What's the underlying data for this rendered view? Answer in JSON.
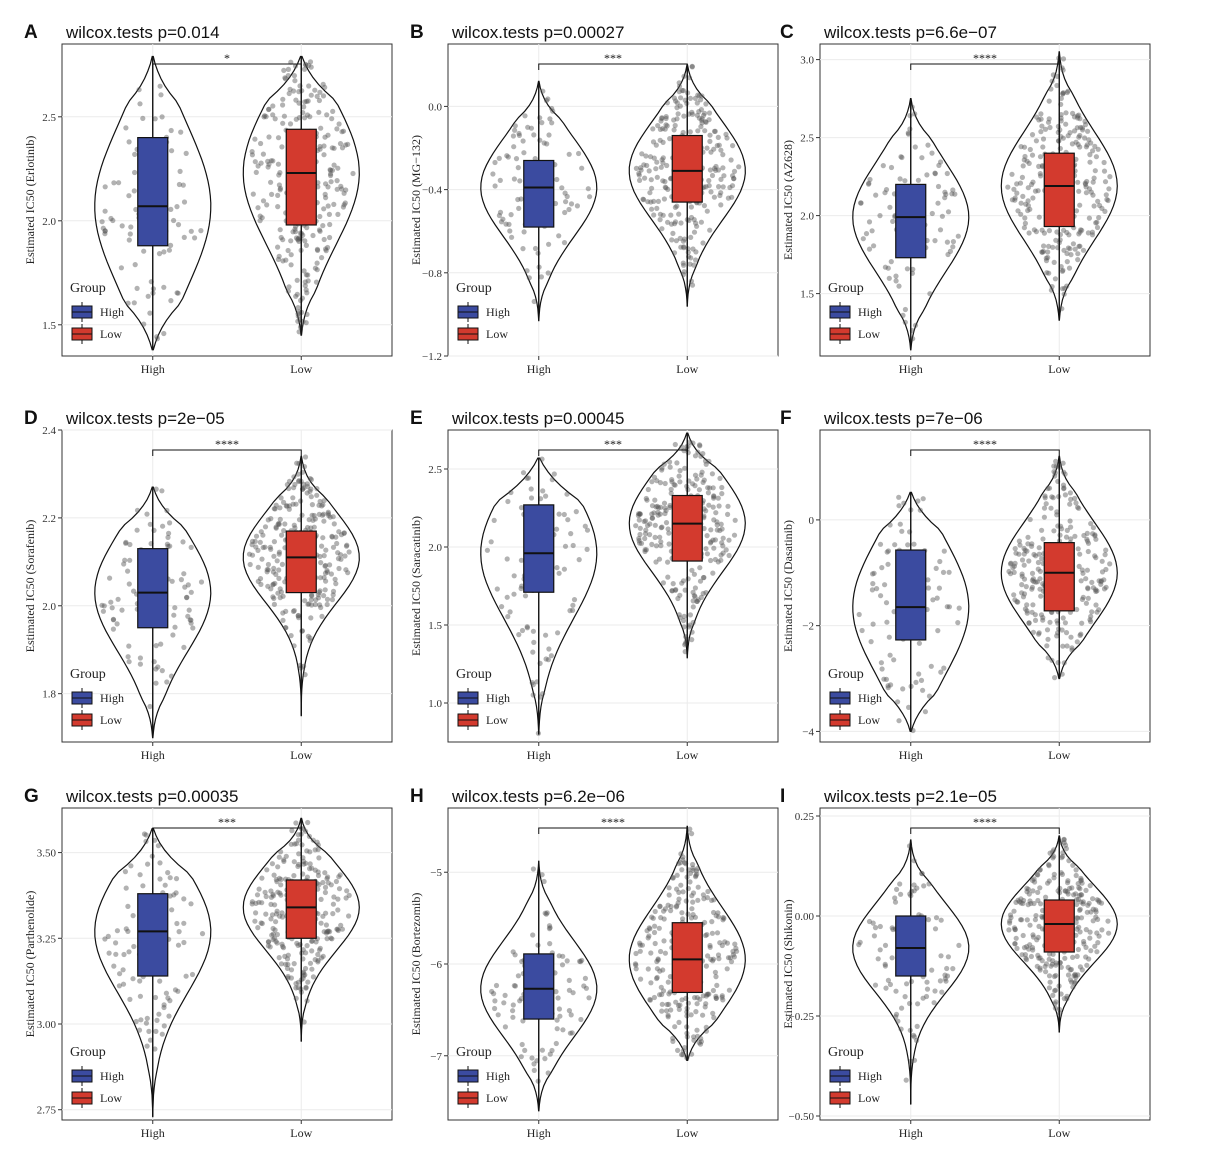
{
  "legend": {
    "title": "Group",
    "entries": [
      {
        "label": "High",
        "color": "#3B4BA0"
      },
      {
        "label": "Low",
        "color": "#D33A2E"
      }
    ]
  },
  "chart_data": [
    {
      "letter": "A",
      "title": "wilcox.tests p=0.014",
      "ylabel": "Estimated IC50 (Erlotinib)",
      "ylim": [
        1.35,
        2.85
      ],
      "yticks": [
        1.5,
        2.0,
        2.5
      ],
      "ytick_labels": [
        "1.5",
        "2.0",
        "2.5"
      ],
      "categories": [
        "High",
        "Low"
      ],
      "significance": "*",
      "box": [
        {
          "min": 1.38,
          "q1": 1.88,
          "median": 2.07,
          "q3": 2.4,
          "max": 2.79
        },
        {
          "min": 1.45,
          "q1": 1.98,
          "median": 2.23,
          "q3": 2.44,
          "max": 2.79
        }
      ]
    },
    {
      "letter": "B",
      "title": "wilcox.tests p=0.00027",
      "ylabel": "Estimated IC50 (MG−132)",
      "ylim": [
        -1.2,
        0.3
      ],
      "yticks": [
        -1.2,
        -0.8,
        -0.4,
        0.0
      ],
      "ytick_labels": [
        "−1.2",
        "−0.8",
        "−0.4",
        "0.0"
      ],
      "categories": [
        "High",
        "Low"
      ],
      "significance": "***",
      "box": [
        {
          "min": -1.03,
          "q1": -0.58,
          "median": -0.39,
          "q3": -0.26,
          "max": 0.12
        },
        {
          "min": -0.96,
          "q1": -0.46,
          "median": -0.31,
          "q3": -0.14,
          "max": 0.2
        }
      ]
    },
    {
      "letter": "C",
      "title": "wilcox.tests p=6.6e−07",
      "ylabel": "Estimated IC50 (AZ628)",
      "ylim": [
        1.1,
        3.1
      ],
      "yticks": [
        1.5,
        2.0,
        2.5,
        3.0
      ],
      "ytick_labels": [
        "1.5",
        "2.0",
        "2.5",
        "3.0"
      ],
      "categories": [
        "High",
        "Low"
      ],
      "significance": "****",
      "box": [
        {
          "min": 1.14,
          "q1": 1.73,
          "median": 1.99,
          "q3": 2.2,
          "max": 2.75
        },
        {
          "min": 1.33,
          "q1": 1.93,
          "median": 2.19,
          "q3": 2.4,
          "max": 3.05
        }
      ]
    },
    {
      "letter": "D",
      "title": "wilcox.tests p=2e−05",
      "ylabel": "Estimated IC50 (Sorafenib)",
      "ylim": [
        1.69,
        2.4
      ],
      "yticks": [
        1.8,
        2.0,
        2.2,
        2.4
      ],
      "ytick_labels": [
        "1.8",
        "2.0",
        "2.2",
        "2.4"
      ],
      "categories": [
        "High",
        "Low"
      ],
      "significance": "****",
      "box": [
        {
          "min": 1.7,
          "q1": 1.95,
          "median": 2.03,
          "q3": 2.13,
          "max": 2.27
        },
        {
          "min": 1.75,
          "q1": 2.03,
          "median": 2.11,
          "q3": 2.17,
          "max": 2.34
        }
      ]
    },
    {
      "letter": "E",
      "title": "wilcox.tests p=0.00045",
      "ylabel": "Estimated IC50 (Saracatinib)",
      "ylim": [
        0.75,
        2.75
      ],
      "yticks": [
        1.0,
        1.5,
        2.0,
        2.5
      ],
      "ytick_labels": [
        "1.0",
        "1.5",
        "2.0",
        "2.5"
      ],
      "categories": [
        "High",
        "Low"
      ],
      "significance": "***",
      "box": [
        {
          "min": 0.8,
          "q1": 1.71,
          "median": 1.96,
          "q3": 2.27,
          "max": 2.57
        },
        {
          "min": 1.29,
          "q1": 1.91,
          "median": 2.15,
          "q3": 2.33,
          "max": 2.73
        }
      ]
    },
    {
      "letter": "F",
      "title": "wilcox.tests p=7e−06",
      "ylabel": "Estimated IC50 (Dasatinib)",
      "ylim": [
        -4.2,
        1.7
      ],
      "yticks": [
        -4,
        -2,
        0
      ],
      "ytick_labels": [
        "−4",
        "−2",
        "0"
      ],
      "categories": [
        "High",
        "Low"
      ],
      "significance": "****",
      "box": [
        {
          "min": -4.0,
          "q1": -2.27,
          "median": -1.65,
          "q3": -0.57,
          "max": 0.52
        },
        {
          "min": -3.0,
          "q1": -1.72,
          "median": -1.0,
          "q3": -0.43,
          "max": 1.2
        }
      ]
    },
    {
      "letter": "G",
      "title": "wilcox.tests p=0.00035",
      "ylabel": "Estimated IC50 (Parthenolide)",
      "ylim": [
        2.72,
        3.63
      ],
      "yticks": [
        2.75,
        3.0,
        3.25,
        3.5
      ],
      "ytick_labels": [
        "2.75",
        "3.00",
        "3.25",
        "3.50"
      ],
      "categories": [
        "High",
        "Low"
      ],
      "significance": "***",
      "box": [
        {
          "min": 2.73,
          "q1": 3.14,
          "median": 3.27,
          "q3": 3.38,
          "max": 3.57
        },
        {
          "min": 2.95,
          "q1": 3.25,
          "median": 3.34,
          "q3": 3.42,
          "max": 3.6
        }
      ]
    },
    {
      "letter": "H",
      "title": "wilcox.tests p=6.2e−06",
      "ylabel": "Estimated IC50 (Bortezomib)",
      "ylim": [
        -7.7,
        -4.3
      ],
      "yticks": [
        -7,
        -6,
        -5
      ],
      "ytick_labels": [
        "−7",
        "−6",
        "−5"
      ],
      "categories": [
        "High",
        "Low"
      ],
      "significance": "****",
      "box": [
        {
          "min": -7.6,
          "q1": -6.6,
          "median": -6.27,
          "q3": -5.89,
          "max": -4.88
        },
        {
          "min": -7.05,
          "q1": -6.31,
          "median": -5.95,
          "q3": -5.55,
          "max": -4.5
        }
      ]
    },
    {
      "letter": "I",
      "title": "wilcox.tests p=2.1e−05",
      "ylabel": "Estimated IC50 (Shikonin)",
      "ylim": [
        -0.51,
        0.27
      ],
      "yticks": [
        -0.5,
        -0.25,
        0.0,
        0.25
      ],
      "ytick_labels": [
        "−0.50",
        "−0.25",
        "0.00",
        "0.25"
      ],
      "categories": [
        "High",
        "Low"
      ],
      "significance": "****",
      "box": [
        {
          "min": -0.47,
          "q1": -0.15,
          "median": -0.08,
          "q3": 0.0,
          "max": 0.19
        },
        {
          "min": -0.29,
          "q1": -0.09,
          "median": -0.02,
          "q3": 0.04,
          "max": 0.2
        }
      ]
    }
  ]
}
